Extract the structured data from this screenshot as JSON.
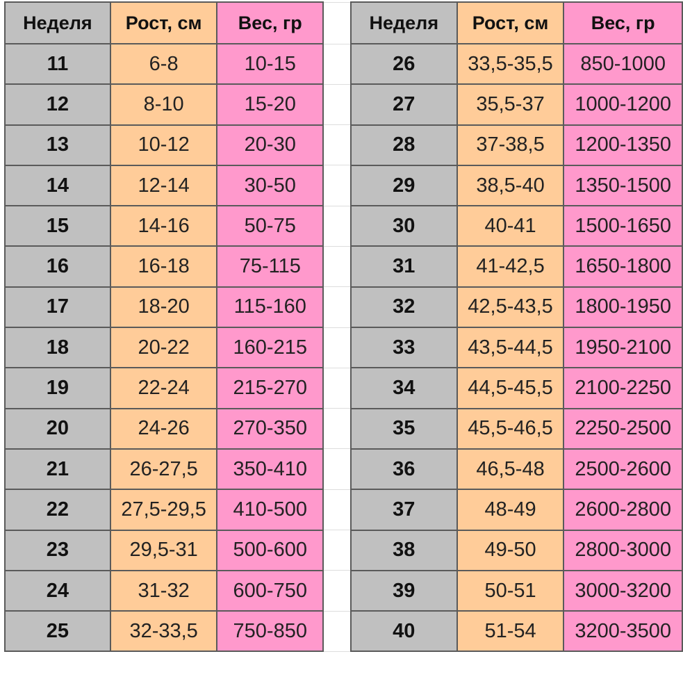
{
  "headers": {
    "week": "Неделя",
    "height": "Рост, см",
    "weight": "Вес, гр"
  },
  "colors": {
    "week": "#c0c0c0",
    "height": "#ffcc99",
    "weight": "#ff99cc"
  },
  "left_rows": [
    {
      "week": "11",
      "height": "6-8",
      "weight": "10-15"
    },
    {
      "week": "12",
      "height": "8-10",
      "weight": "15-20"
    },
    {
      "week": "13",
      "height": "10-12",
      "weight": "20-30"
    },
    {
      "week": "14",
      "height": "12-14",
      "weight": "30-50"
    },
    {
      "week": "15",
      "height": "14-16",
      "weight": "50-75"
    },
    {
      "week": "16",
      "height": "16-18",
      "weight": "75-115"
    },
    {
      "week": "17",
      "height": "18-20",
      "weight": "115-160"
    },
    {
      "week": "18",
      "height": "20-22",
      "weight": "160-215"
    },
    {
      "week": "19",
      "height": "22-24",
      "weight": "215-270"
    },
    {
      "week": "20",
      "height": "24-26",
      "weight": "270-350"
    },
    {
      "week": "21",
      "height": "26-27,5",
      "weight": "350-410"
    },
    {
      "week": "22",
      "height": "27,5-29,5",
      "weight": "410-500"
    },
    {
      "week": "23",
      "height": "29,5-31",
      "weight": "500-600"
    },
    {
      "week": "24",
      "height": "31-32",
      "weight": "600-750"
    },
    {
      "week": "25",
      "height": "32-33,5",
      "weight": "750-850"
    }
  ],
  "right_rows": [
    {
      "week": "26",
      "height": "33,5-35,5",
      "weight": "850-1000"
    },
    {
      "week": "27",
      "height": "35,5-37",
      "weight": "1000-1200"
    },
    {
      "week": "28",
      "height": "37-38,5",
      "weight": "1200-1350"
    },
    {
      "week": "29",
      "height": "38,5-40",
      "weight": "1350-1500"
    },
    {
      "week": "30",
      "height": "40-41",
      "weight": "1500-1650"
    },
    {
      "week": "31",
      "height": "41-42,5",
      "weight": "1650-1800"
    },
    {
      "week": "32",
      "height": "42,5-43,5",
      "weight": "1800-1950"
    },
    {
      "week": "33",
      "height": "43,5-44,5",
      "weight": "1950-2100"
    },
    {
      "week": "34",
      "height": "44,5-45,5",
      "weight": "2100-2250"
    },
    {
      "week": "35",
      "height": "45,5-46,5",
      "weight": "2250-2500"
    },
    {
      "week": "36",
      "height": "46,5-48",
      "weight": "2500-2600"
    },
    {
      "week": "37",
      "height": "48-49",
      "weight": "2600-2800"
    },
    {
      "week": "38",
      "height": "49-50",
      "weight": "2800-3000"
    },
    {
      "week": "39",
      "height": "50-51",
      "weight": "3000-3200"
    },
    {
      "week": "40",
      "height": "51-54",
      "weight": "3200-3500"
    }
  ]
}
